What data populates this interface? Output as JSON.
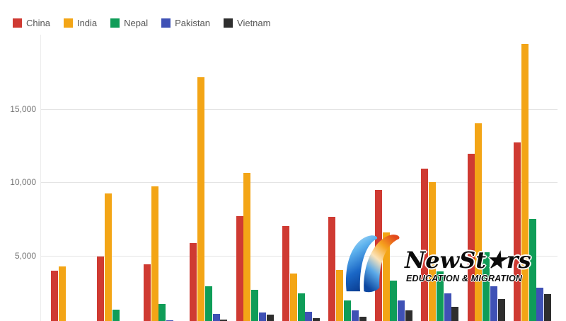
{
  "legend": {
    "items": [
      {
        "label": "China",
        "color": "#CF3A32"
      },
      {
        "label": "India",
        "color": "#F3A516"
      },
      {
        "label": "Nepal",
        "color": "#0F9D58"
      },
      {
        "label": "Pakistan",
        "color": "#3F51B5"
      },
      {
        "label": "Vietnam",
        "color": "#2E2E2E"
      }
    ]
  },
  "y_axis": {
    "tick_labels": [
      "15,000",
      "10,000",
      "5,000"
    ],
    "tick_values": [
      15000,
      10000,
      5000
    ],
    "text_color": "#757575"
  },
  "watermark": {
    "brand": "NewSt★rs",
    "tagline": "EDUCATION  &  MIGRATION"
  },
  "chart_data": {
    "type": "bar",
    "title": "",
    "xlabel": "",
    "ylabel": "",
    "categories": [
      "",
      "",
      "",
      "",
      "",
      "",
      "",
      "",
      "",
      "",
      ""
    ],
    "categories_visible": false,
    "series": [
      {
        "name": "China",
        "color": "#CF3A32",
        "values": [
          3950,
          4950,
          4400,
          5850,
          7700,
          7000,
          7650,
          9450,
          10900,
          11950,
          12700
        ]
      },
      {
        "name": "India",
        "color": "#F3A516",
        "values": [
          4250,
          9250,
          9700,
          17150,
          10650,
          3750,
          4000,
          6550,
          10000,
          14000,
          19400
        ]
      },
      {
        "name": "Nepal",
        "color": "#0F9D58",
        "values": [
          450,
          1300,
          1700,
          2900,
          2650,
          2400,
          1950,
          3300,
          3900,
          5200,
          7500
        ]
      },
      {
        "name": "Pakistan",
        "color": "#3F51B5",
        "values": [
          350,
          450,
          600,
          1000,
          1100,
          1150,
          1250,
          1950,
          2400,
          2900,
          2800
        ]
      },
      {
        "name": "Vietnam",
        "color": "#2E2E2E",
        "values": [
          300,
          400,
          450,
          650,
          950,
          750,
          800,
          1250,
          1500,
          2050,
          2350
        ]
      }
    ],
    "ylim": [
      0,
      20000
    ],
    "grid": true,
    "gridline_color": "#e4e4e4",
    "legend_position": "top-left",
    "baseline_cropped": true
  }
}
